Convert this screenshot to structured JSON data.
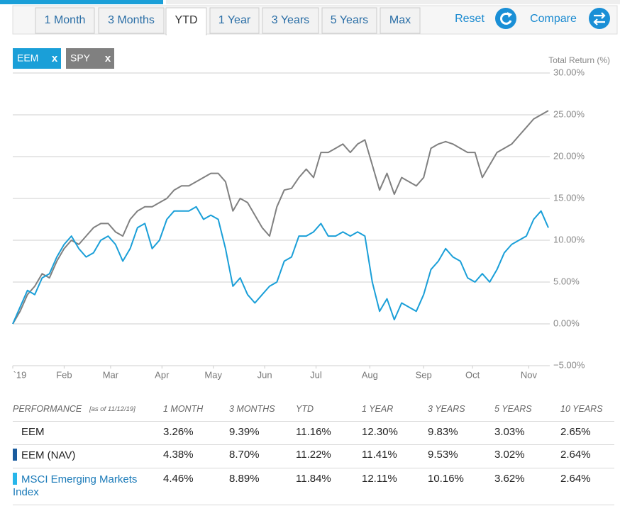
{
  "tabs": [
    "1 Month",
    "3 Months",
    "YTD",
    "1 Year",
    "3 Years",
    "5 Years",
    "Max"
  ],
  "selected_tab": 2,
  "actions": [
    "Reset",
    "Compare"
  ],
  "legend_close": "x",
  "chart_data": {
    "type": "line",
    "y_axis_label": "Total Return (%)",
    "x": [
      0,
      3,
      6,
      9,
      12,
      15,
      18,
      21,
      24,
      27,
      30,
      33,
      36,
      39,
      42,
      45,
      48,
      51,
      54,
      57,
      60,
      63,
      66,
      69,
      72,
      75,
      78,
      81,
      84,
      87,
      90,
      93,
      96,
      99,
      102,
      105,
      108,
      111,
      114,
      117,
      120,
      123,
      126,
      129,
      132,
      135,
      138,
      141,
      144,
      147,
      150,
      153,
      156,
      159,
      162,
      165,
      168,
      171,
      174,
      177,
      180,
      183,
      186,
      189,
      192,
      195,
      198,
      201,
      204,
      207,
      210,
      213,
      216,
      219
    ],
    "xlim": [
      0,
      219
    ],
    "xticks": [
      {
        "value": 0,
        "label": "`19"
      },
      {
        "value": 21,
        "label": "Feb"
      },
      {
        "value": 40,
        "label": "Mar"
      },
      {
        "value": 61,
        "label": "Apr"
      },
      {
        "value": 82,
        "label": "May"
      },
      {
        "value": 103,
        "label": "Jun"
      },
      {
        "value": 124,
        "label": "Jul"
      },
      {
        "value": 146,
        "label": "Aug"
      },
      {
        "value": 168,
        "label": "Sep"
      },
      {
        "value": 188,
        "label": "Oct"
      },
      {
        "value": 211,
        "label": "Nov"
      }
    ],
    "ylim": [
      -5,
      30
    ],
    "yticks": [
      {
        "value": 30,
        "label": "30.00%"
      },
      {
        "value": 25,
        "label": "25.00%"
      },
      {
        "value": 20,
        "label": "20.00%"
      },
      {
        "value": 15,
        "label": "15.00%"
      },
      {
        "value": 10,
        "label": "10.00%"
      },
      {
        "value": 5,
        "label": "5.00%"
      },
      {
        "value": 0,
        "label": "0.00%"
      },
      {
        "value": -5,
        "label": "−5.00%"
      }
    ],
    "grid": true,
    "series": [
      {
        "name": "EEM",
        "color": "#1a9fd8",
        "values": [
          0,
          2,
          4,
          3.5,
          5.5,
          6,
          8,
          9.5,
          10.5,
          9,
          8,
          8.5,
          10,
          10.5,
          9.5,
          7.5,
          9,
          11.5,
          12,
          9,
          10,
          12.5,
          13.5,
          13.5,
          13.5,
          14,
          12.5,
          13,
          12.5,
          9,
          4.5,
          5.5,
          3.5,
          2.5,
          3.5,
          4.5,
          5,
          7.5,
          8,
          10.5,
          10.5,
          11,
          12,
          10.5,
          10.5,
          11,
          10.5,
          11,
          10.5,
          5,
          1.5,
          3,
          0.5,
          2.5,
          2,
          1.5,
          3.5,
          6.5,
          7.5,
          9,
          8,
          7.5,
          5.5,
          5,
          6,
          5,
          6.5,
          8.5,
          9.5,
          10,
          10.5,
          12.5,
          13.5,
          11.5
        ]
      },
      {
        "name": "SPY",
        "color": "#808080",
        "values": [
          0,
          1.5,
          3.5,
          4.5,
          6,
          5.5,
          7.5,
          9,
          10,
          9.5,
          10.5,
          11.5,
          12,
          12,
          11,
          10.5,
          12.5,
          13.5,
          14,
          14,
          14.5,
          15,
          16,
          16.5,
          16.5,
          17,
          17.5,
          18,
          18,
          17,
          13.5,
          15,
          14.5,
          13,
          11.5,
          10.5,
          14,
          16,
          16.2,
          17.5,
          18.5,
          17.5,
          20.5,
          20.5,
          21,
          21.5,
          20.5,
          21.5,
          22,
          19,
          16,
          18,
          15.5,
          17.5,
          17,
          16.5,
          17.5,
          21,
          21.5,
          21.8,
          21.5,
          21,
          20.5,
          20.5,
          17.5,
          19,
          20.5,
          21,
          21.5,
          22.5,
          23.5,
          24.5,
          25,
          25.5
        ]
      }
    ]
  },
  "table": {
    "header": [
      "PERFORMANCE",
      "1 MONTH",
      "3 MONTHS",
      "YTD",
      "1 YEAR",
      "3 YEARS",
      "5 YEARS",
      "10 YEARS"
    ],
    "as_of": "[as of 11/12/19]",
    "rows": [
      {
        "name": "EEM",
        "marker": null,
        "name_color": "#222222",
        "cells": [
          "3.26%",
          "9.39%",
          "11.16%",
          "12.30%",
          "9.83%",
          "3.03%",
          "2.65%"
        ]
      },
      {
        "name": "EEM (NAV)",
        "marker": "#1a5c9e",
        "name_color": "#222222",
        "cells": [
          "4.38%",
          "8.70%",
          "11.22%",
          "11.41%",
          "9.53%",
          "3.02%",
          "2.64%"
        ]
      },
      {
        "name": "MSCI Emerging Markets Index",
        "marker": "#27b6ea",
        "name_color": "#1a7ab8",
        "cells": [
          "4.46%",
          "8.89%",
          "11.84%",
          "12.11%",
          "10.16%",
          "3.62%",
          "2.64%"
        ]
      }
    ]
  }
}
